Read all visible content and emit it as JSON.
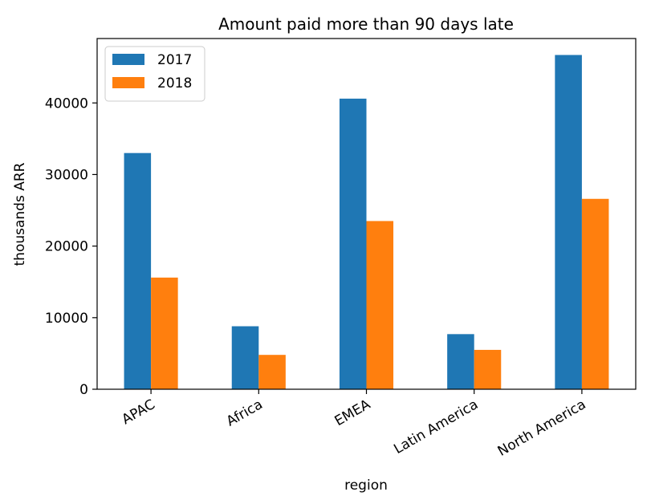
{
  "chart_data": {
    "type": "bar",
    "title": "Amount paid more than 90 days late",
    "xlabel": "region",
    "ylabel": "thousands ARR",
    "categories": [
      "APAC",
      "Africa",
      "EMEA",
      "Latin America",
      "North America"
    ],
    "series": [
      {
        "name": "2017",
        "color": "#1f77b4",
        "values": [
          33000,
          8800,
          40600,
          7700,
          46700
        ]
      },
      {
        "name": "2018",
        "color": "#ff7f0e",
        "values": [
          15600,
          4800,
          23500,
          5500,
          26600
        ]
      }
    ],
    "ylim": [
      0,
      49000
    ],
    "yticks": [
      0,
      10000,
      20000,
      30000,
      40000
    ],
    "xtick_rotation": "30 degrees",
    "grid": false,
    "legend": "top-left"
  }
}
